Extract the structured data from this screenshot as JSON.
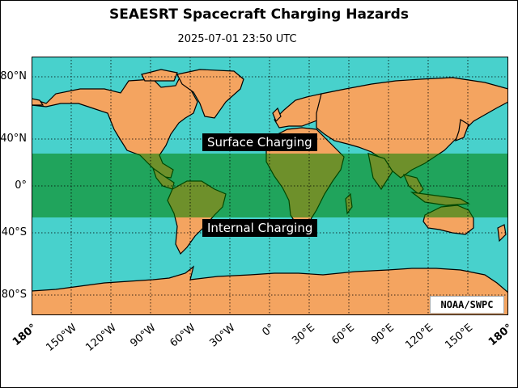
{
  "title": "SEAESRT Spacecraft Charging Hazards",
  "timestamp": "2025-07-01 23:50 UTC",
  "credit": "NOAA/SWPC",
  "zones": {
    "surface": "Surface Charging",
    "internal": "Internal Charging"
  },
  "lat_labels": [
    "80°N",
    "40°N",
    "0°",
    "40°S",
    "80°S"
  ],
  "lon_labels": [
    "180°",
    "150°W",
    "120°W",
    "90°W",
    "60°W",
    "30°W",
    "0°",
    "30°E",
    "60°E",
    "90°E",
    "120°E",
    "150°E",
    "180°"
  ],
  "colors": {
    "ocean": "#48d1cc",
    "land": "#f4a460",
    "hazard_band": "#008000",
    "label_bg": "#000000"
  },
  "hazard_band_lat": [
    27,
    -27
  ],
  "map_extent": {
    "lon": [
      -180,
      180
    ],
    "lat": [
      -90,
      90
    ]
  }
}
